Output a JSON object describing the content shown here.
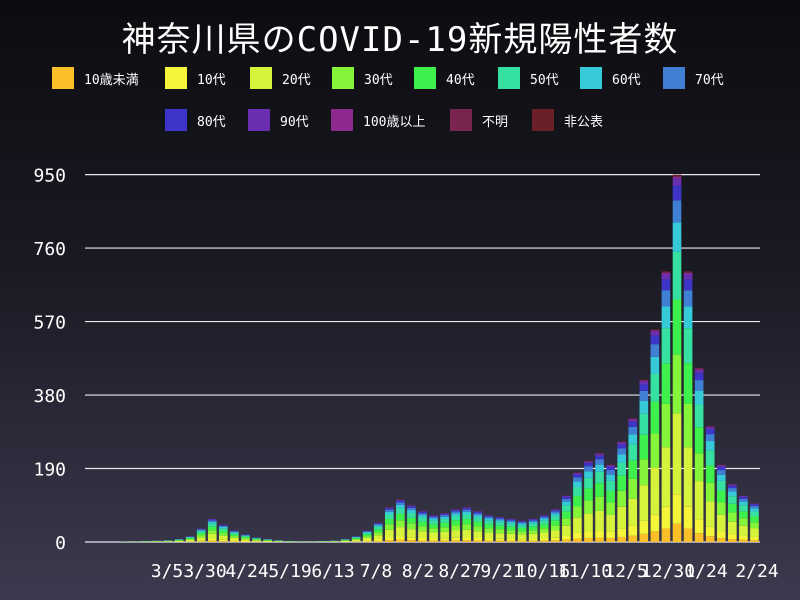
{
  "chart_data": {
    "type": "bar",
    "stacked": true,
    "title": "神奈川県のCOVID-19新規陽性者数",
    "xlabel": "",
    "ylabel": "",
    "ylim": [
      0,
      980
    ],
    "y_ticks": [
      0,
      190,
      380,
      570,
      760,
      950
    ],
    "x_tick_labels": [
      "3/5",
      "3/30",
      "4/24",
      "5/19",
      "6/13",
      "7/8",
      "8/2",
      "8/27",
      "9/21",
      "10/16",
      "11/10",
      "12/5",
      "12/30",
      "1/24",
      "2/24"
    ],
    "grid": true,
    "legend_position": "top",
    "series": [
      {
        "name": "10歳未満",
        "color": "#fbbf28",
        "share": 0.05
      },
      {
        "name": "10代",
        "color": "#f4f439",
        "share": 0.08
      },
      {
        "name": "20代",
        "color": "#d7f23a",
        "share": 0.22
      },
      {
        "name": "30代",
        "color": "#84f538",
        "share": 0.16
      },
      {
        "name": "40代",
        "color": "#3ef04c",
        "share": 0.15
      },
      {
        "name": "50代",
        "color": "#36e0a1",
        "share": 0.13
      },
      {
        "name": "60代",
        "color": "#36c9d8",
        "share": 0.08
      },
      {
        "name": "70代",
        "color": "#3f7fd4",
        "share": 0.06
      },
      {
        "name": "80代",
        "color": "#3c35c8",
        "share": 0.04
      },
      {
        "name": "90代",
        "color": "#6a2fb0",
        "share": 0.02
      },
      {
        "name": "100歳以上",
        "color": "#8e2a8e",
        "share": 0.004
      },
      {
        "name": "不明",
        "color": "#7a2550",
        "share": 0.003
      },
      {
        "name": "非公表",
        "color": "#6a2026",
        "share": 0.003
      }
    ],
    "weekly_totals": [
      0,
      0,
      0,
      1,
      2,
      3,
      4,
      5,
      8,
      15,
      35,
      60,
      45,
      30,
      20,
      12,
      8,
      5,
      3,
      2,
      2,
      3,
      4,
      8,
      15,
      30,
      50,
      90,
      110,
      95,
      80,
      70,
      75,
      85,
      90,
      80,
      70,
      65,
      60,
      55,
      60,
      70,
      85,
      120,
      180,
      210,
      230,
      200,
      260,
      320,
      420,
      550,
      700,
      950,
      700,
      450,
      300,
      200,
      150,
      120,
      100
    ]
  }
}
